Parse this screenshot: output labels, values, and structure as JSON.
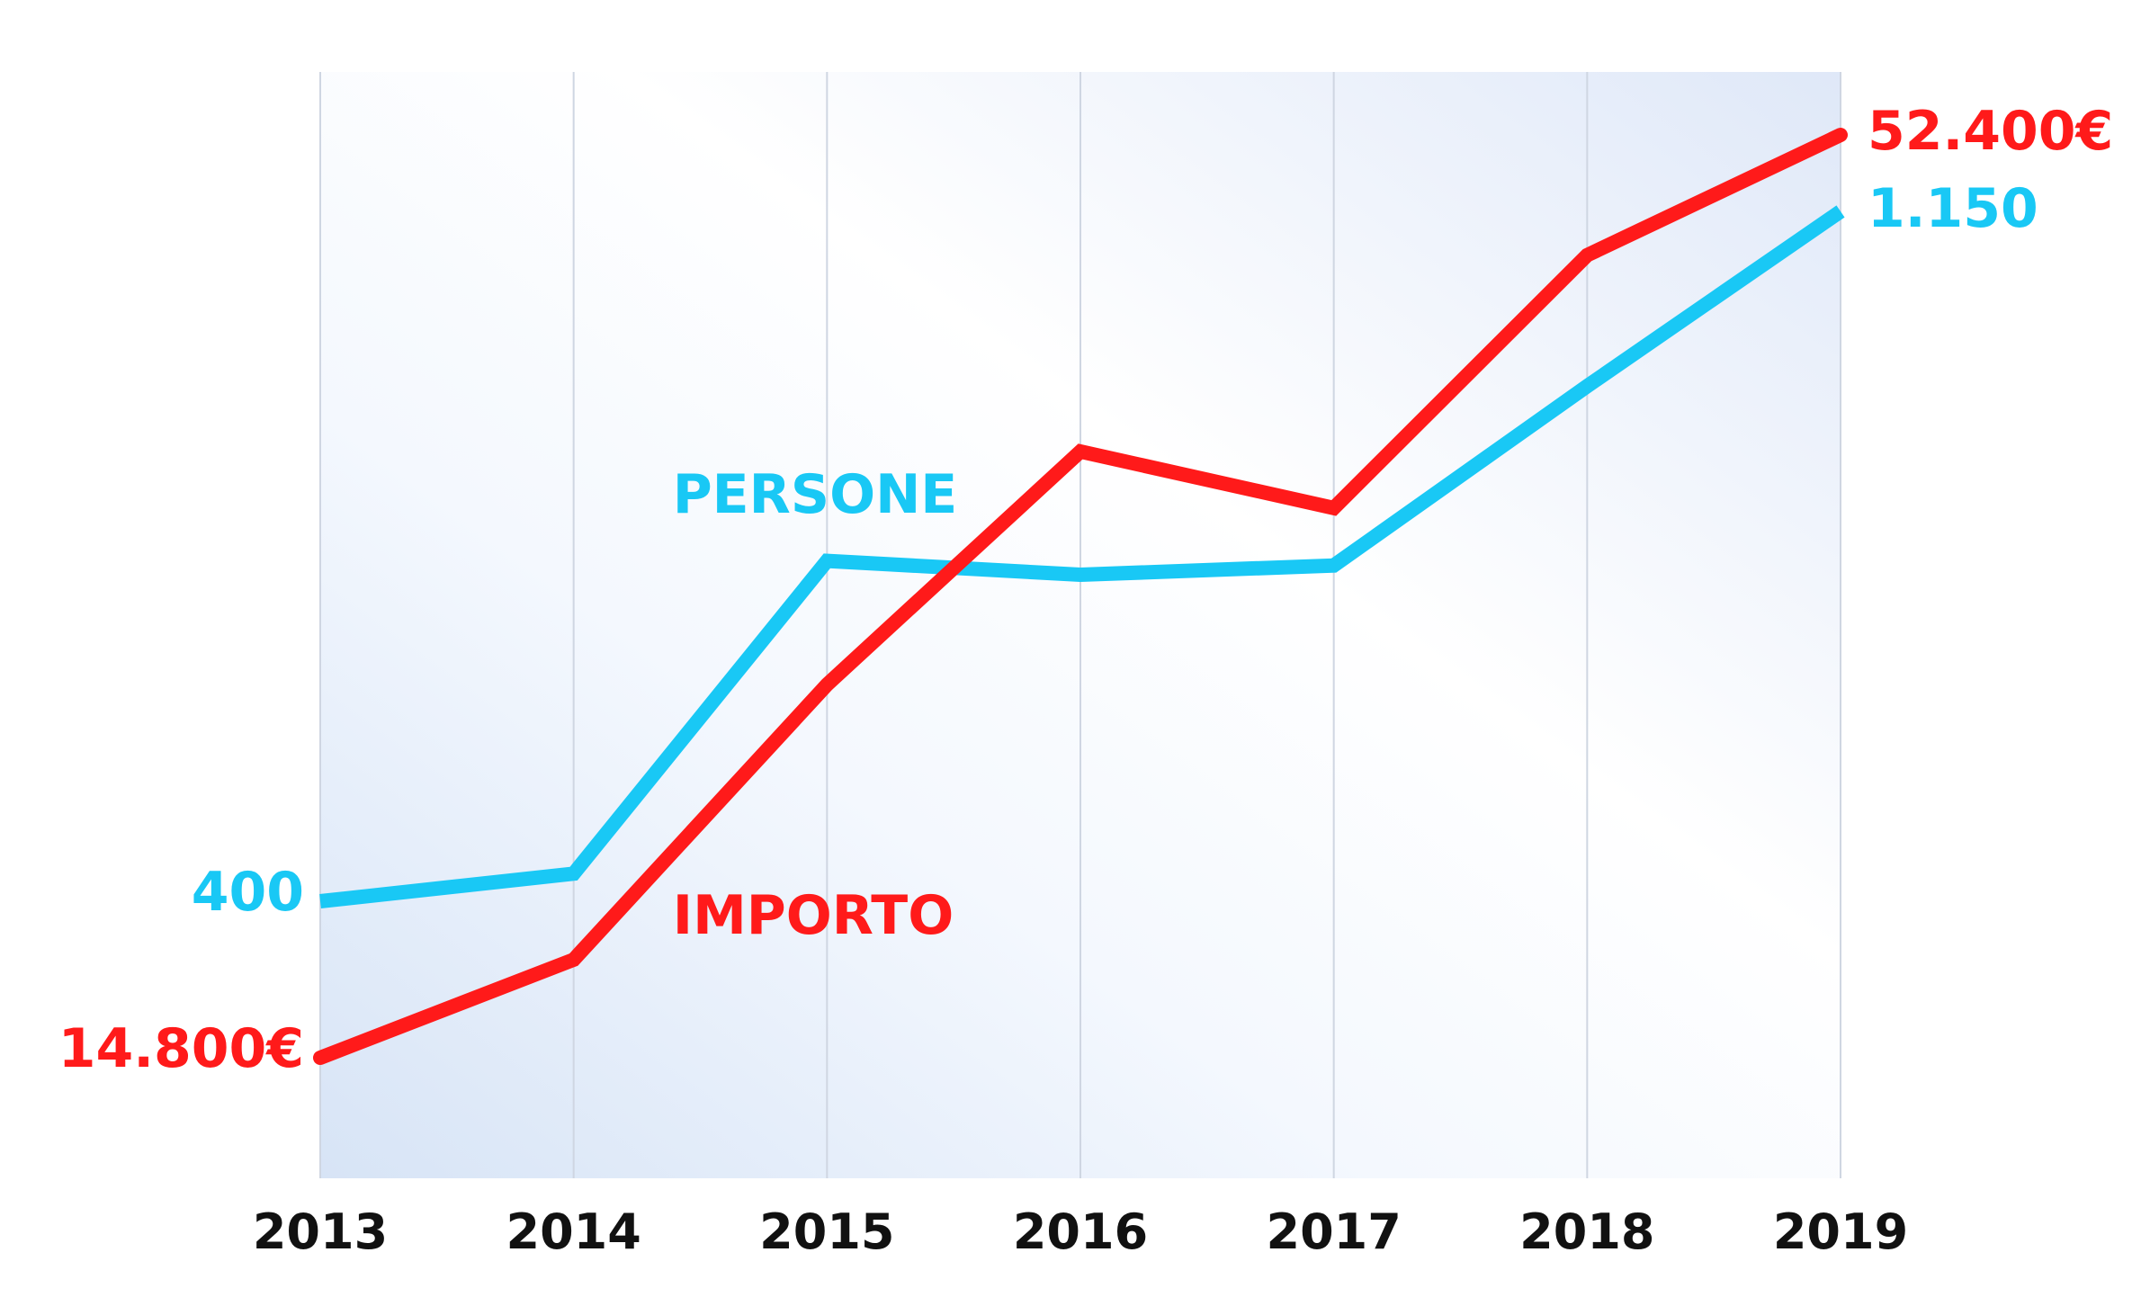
{
  "chart_data": {
    "type": "line",
    "x": [
      "2013",
      "2014",
      "2015",
      "2016",
      "2017",
      "2018",
      "2019"
    ],
    "series": [
      {
        "name": "PERSONE",
        "color": "#19c8f5",
        "values": [
          400,
          430,
          770,
          755,
          765,
          960,
          1150
        ],
        "start_label": "400",
        "end_label": "1.150"
      },
      {
        "name": "IMPORTO",
        "color": "#ff1a1a",
        "values": [
          14800,
          18800,
          30000,
          39500,
          37200,
          47500,
          52400
        ],
        "start_label": "14.800€",
        "end_label": "52.400€"
      }
    ],
    "grid": "vertical",
    "legend": "inline labels on lines"
  }
}
